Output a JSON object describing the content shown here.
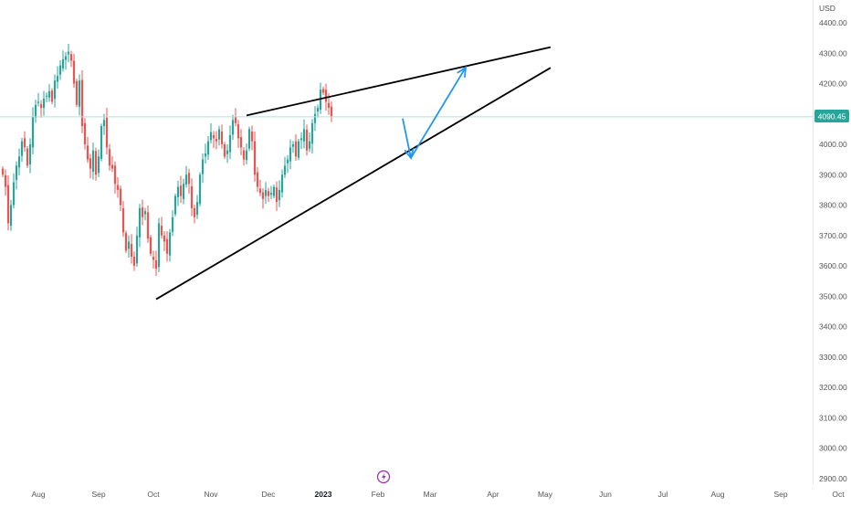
{
  "colors": {
    "up": "#26a69a",
    "down": "#ef5350",
    "trendline": "#000000",
    "arrow": "#2196f3",
    "price_badge": "#26a69a",
    "axis_text": "#555555",
    "price_line": "#b2dfdb"
  },
  "flash_icon": "lightning-bolt-icon",
  "chart_data": {
    "type": "candlestick",
    "currency": "USD",
    "last_price": 4090.45,
    "last_price_label": "4090.45",
    "ylim": [
      2860,
      4460
    ],
    "y_ticks": [
      2900,
      3000,
      3100,
      3200,
      3300,
      3400,
      3500,
      3600,
      3700,
      3800,
      3900,
      4000,
      4100,
      4200,
      4300,
      4400
    ],
    "y_tick_labels": [
      "2900.00",
      "3000.00",
      "3100.00",
      "3200.00",
      "3300.00",
      "3400.00",
      "3500.00",
      "3600.00",
      "3700.00",
      "3800.00",
      "3900.00",
      "4000.00",
      "4100.00",
      "4200.00",
      "4300.00",
      "4400.00"
    ],
    "x_ticks": [
      {
        "label": "Aug",
        "bar": 0,
        "bold": false
      },
      {
        "label": "Sep",
        "bar": 22,
        "bold": false
      },
      {
        "label": "Oct",
        "bar": 42,
        "bold": false
      },
      {
        "label": "Nov",
        "bar": 63,
        "bold": false
      },
      {
        "label": "Dec",
        "bar": 84,
        "bold": false
      },
      {
        "label": "2023",
        "bar": 104,
        "bold": true
      },
      {
        "label": "Feb",
        "bar": 124,
        "bold": false
      },
      {
        "label": "Mar",
        "bar": 143,
        "bold": false
      },
      {
        "label": "Apr",
        "bar": 166,
        "bold": false
      },
      {
        "label": "May",
        "bar": 185,
        "bold": false
      },
      {
        "label": "Jun",
        "bar": 207,
        "bold": false
      },
      {
        "label": "Jul",
        "bar": 228,
        "bold": false
      },
      {
        "label": "Aug",
        "bar": 248,
        "bold": false
      },
      {
        "label": "Sep",
        "bar": 271,
        "bold": false
      },
      {
        "label": "Oct",
        "bar": 292,
        "bold": false
      }
    ],
    "start_bar": -13,
    "closes": [
      3900,
      3860,
      3740,
      3800,
      3875,
      3930,
      3960,
      4010,
      3990,
      3930,
      4000,
      4090,
      4130,
      4140,
      4120,
      4150,
      4160,
      4175,
      4140,
      4210,
      4225,
      4260,
      4280,
      4290,
      4305,
      4275,
      4200,
      4130,
      4210,
      4060,
      4000,
      3950,
      3920,
      3980,
      3900,
      3960,
      4060,
      4080,
      3990,
      3930,
      3920,
      3870,
      3850,
      3800,
      3710,
      3650,
      3680,
      3630,
      3600,
      3700,
      3790,
      3760,
      3780,
      3690,
      3640,
      3620,
      3590,
      3740,
      3700,
      3680,
      3640,
      3710,
      3760,
      3830,
      3860,
      3830,
      3870,
      3900,
      3870,
      3790,
      3760,
      3810,
      3900,
      3950,
      3970,
      4010,
      4040,
      4020,
      4010,
      4050,
      4000,
      3960,
      3980,
      4030,
      4080,
      4070,
      4020,
      3990,
      3950,
      3980,
      4050,
      4010,
      3900,
      3860,
      3840,
      3820,
      3850,
      3830,
      3840,
      3860,
      3810,
      3850,
      3900,
      3930,
      3950,
      3990,
      4000,
      3960,
      4010,
      4020,
      4050,
      3980,
      4010,
      4070,
      4100,
      4120,
      4180,
      4170,
      4140,
      4120,
      4090
    ],
    "trendlines": [
      {
        "name": "upper-trendline",
        "from": {
          "bar": 76,
          "price": 4095
        },
        "to": {
          "bar": 187,
          "price": 4320
        }
      },
      {
        "name": "lower-trendline",
        "from": {
          "bar": 43,
          "price": 3490
        },
        "to": {
          "bar": 187,
          "price": 4252
        }
      }
    ],
    "arrows": [
      {
        "name": "projection-arrow-down",
        "from": {
          "bar": 133,
          "price": 4085
        },
        "to": {
          "bar": 136,
          "price": 3955
        }
      },
      {
        "name": "projection-arrow-up",
        "from": {
          "bar": 136,
          "price": 3955
        },
        "to": {
          "bar": 156,
          "price": 4253
        }
      }
    ]
  }
}
